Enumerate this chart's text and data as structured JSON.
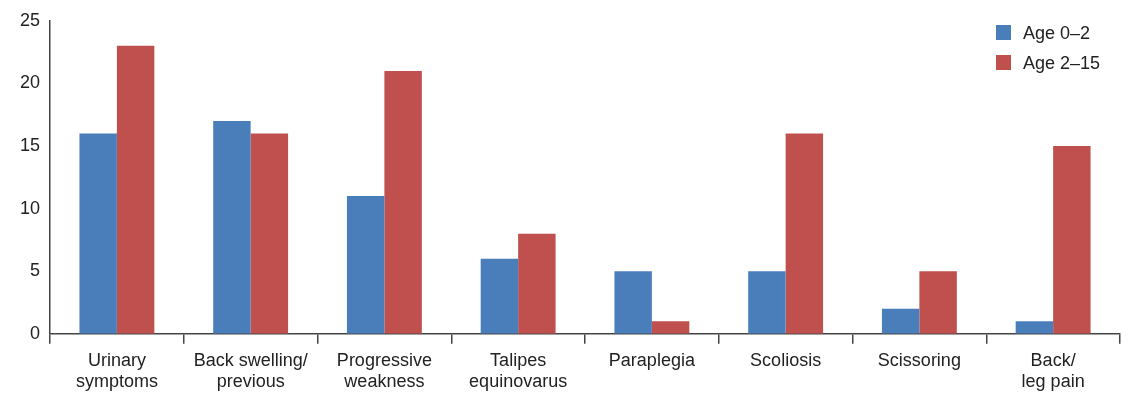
{
  "chart_data": {
    "type": "bar",
    "categories": [
      "Urinary\nsymptoms",
      "Back swelling/\nprevious",
      "Progressive\nweakness",
      "Talipes\nequinovarus",
      "Paraplegia",
      "Scoliosis",
      "Scissoring",
      "Back/\nleg pain"
    ],
    "series": [
      {
        "name": "Age 0–2",
        "color": "#4a7ebb",
        "values": [
          16,
          17,
          11,
          6,
          5,
          5,
          2,
          1
        ]
      },
      {
        "name": "Age 2–15",
        "color": "#c0504d",
        "values": [
          23,
          16,
          21,
          8,
          1,
          16,
          5,
          15
        ]
      }
    ],
    "ylim": [
      0,
      25
    ],
    "yticks": [
      0,
      5,
      10,
      15,
      20,
      25
    ],
    "grid": false,
    "legend": "top right"
  }
}
